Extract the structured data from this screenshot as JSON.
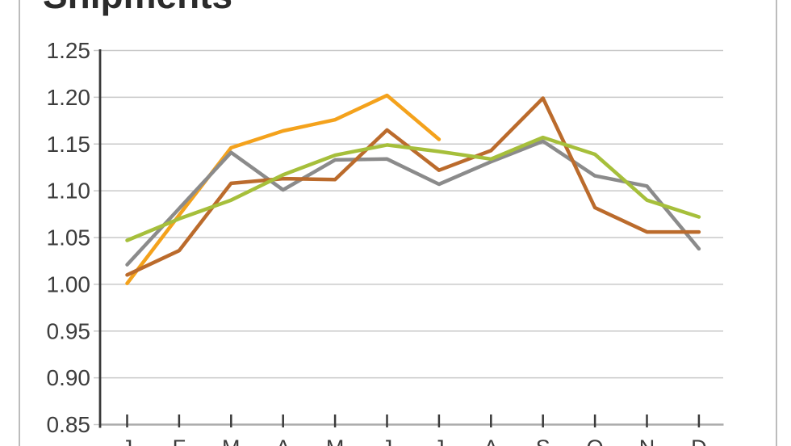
{
  "chart_data": {
    "type": "line",
    "title": "Shipments",
    "categories": [
      "J",
      "F",
      "M",
      "A",
      "M",
      "J",
      "J",
      "A",
      "S",
      "O",
      "N",
      "D"
    ],
    "y_tick_labels": [
      "1.25",
      "1.20",
      "1.15",
      "1.10",
      "1.05",
      "1.00",
      "0.95",
      "0.90",
      "0.85"
    ],
    "ylim": [
      0.85,
      1.25
    ],
    "y_step": 0.05,
    "grid": true,
    "legend": "none",
    "series": [
      {
        "name": "amber",
        "color": "#F4A21C",
        "values": [
          1.001,
          1.074,
          1.146,
          1.164,
          1.176,
          1.202,
          1.155,
          null,
          null,
          null,
          null,
          null
        ]
      },
      {
        "name": "gray",
        "color": "#8B8B8B",
        "values": [
          1.021,
          1.081,
          1.141,
          1.101,
          1.133,
          1.134,
          1.107,
          1.131,
          1.153,
          1.116,
          1.105,
          1.038
        ]
      },
      {
        "name": "orange-brown",
        "color": "#BB6B2C",
        "values": [
          1.01,
          1.036,
          1.108,
          1.113,
          1.112,
          1.165,
          1.122,
          1.143,
          1.199,
          1.082,
          1.056,
          1.056
        ]
      },
      {
        "name": "yellow-green",
        "color": "#A6BF3B",
        "values": [
          1.047,
          1.07,
          1.09,
          1.117,
          1.138,
          1.149,
          1.142,
          1.134,
          1.157,
          1.139,
          1.09,
          1.072
        ]
      }
    ]
  }
}
